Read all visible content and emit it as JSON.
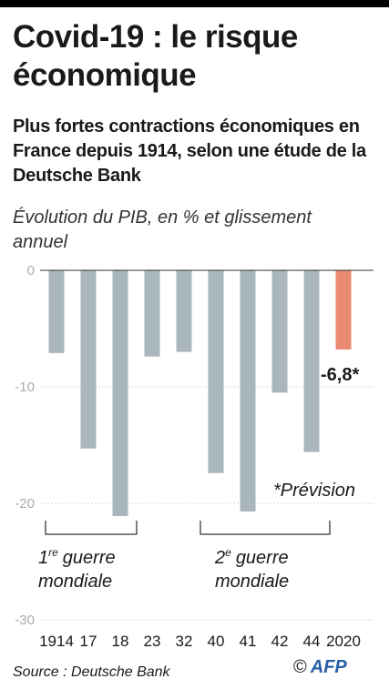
{
  "header": {
    "title": "Covid-19 : le risque économique",
    "subtitle": "Plus fortes contractions économiques en France depuis 1914, selon une étude de la Deutsche Bank"
  },
  "chart_data": {
    "type": "bar",
    "ylabel": "Évolution du PIB, en % et glissement annuel",
    "categories": [
      "1914",
      "17",
      "18",
      "23",
      "32",
      "40",
      "41",
      "42",
      "44",
      "2020"
    ],
    "values": [
      -7.1,
      -15.3,
      -21.1,
      -7.4,
      -7.0,
      -17.4,
      -20.7,
      -10.5,
      -15.6,
      -6.8
    ],
    "ylim": [
      -30,
      0
    ],
    "yticks": [
      0,
      -10,
      -20,
      -30
    ],
    "ytick_labels": [
      "0",
      "-10",
      "-20",
      "-30"
    ],
    "grid": true,
    "colors": {
      "historic": "#a9b7bc",
      "forecast": "#e98a72"
    },
    "forecast_index": 9,
    "value_label": "-6,8*",
    "annotations": {
      "forecast_note": "*Prévision",
      "ww1": "1re guerre mondiale",
      "ww1_ordinal": "1",
      "ww1_suffix": "re",
      "ww1_word": "guerre",
      "ww1_line2": "mondiale",
      "ww2": "2e guerre mondiale",
      "ww2_ordinal": "2",
      "ww2_suffix": "e",
      "ww2_word": "guerre",
      "ww2_line2": "mondiale"
    }
  },
  "footer": {
    "source": "Source : Deutsche Bank",
    "copyright": "©",
    "brand": "AFP"
  }
}
